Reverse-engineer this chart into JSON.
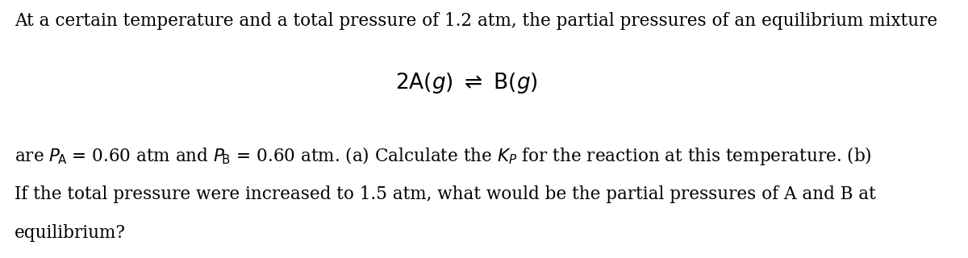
{
  "background_color": "#ffffff",
  "text_color": "#000000",
  "line1": "At a certain temperature and a total pressure of 1.2 atm, the partial pressures of an equilibrium mixture",
  "line3_part1": "are ",
  "line3_PA": "$P_{\\!A}$",
  "line3_part2": " = 0.60 atm and ",
  "line3_PB": "$P_{\\!B}$",
  "line3_part3": " = 0.60 atm. (a) Calculate the ",
  "line3_KP": "$K_P$",
  "line3_part4": " for the reaction at this temperature. (b)",
  "line4": "If the total pressure were increased to 1.5 atm, what would be the partial pressures of A and B at",
  "line5": "equilibrium?",
  "fontsize": 15.5,
  "reaction_fontsize": 19,
  "fig_width": 12.0,
  "fig_height": 3.2,
  "dpi": 100
}
